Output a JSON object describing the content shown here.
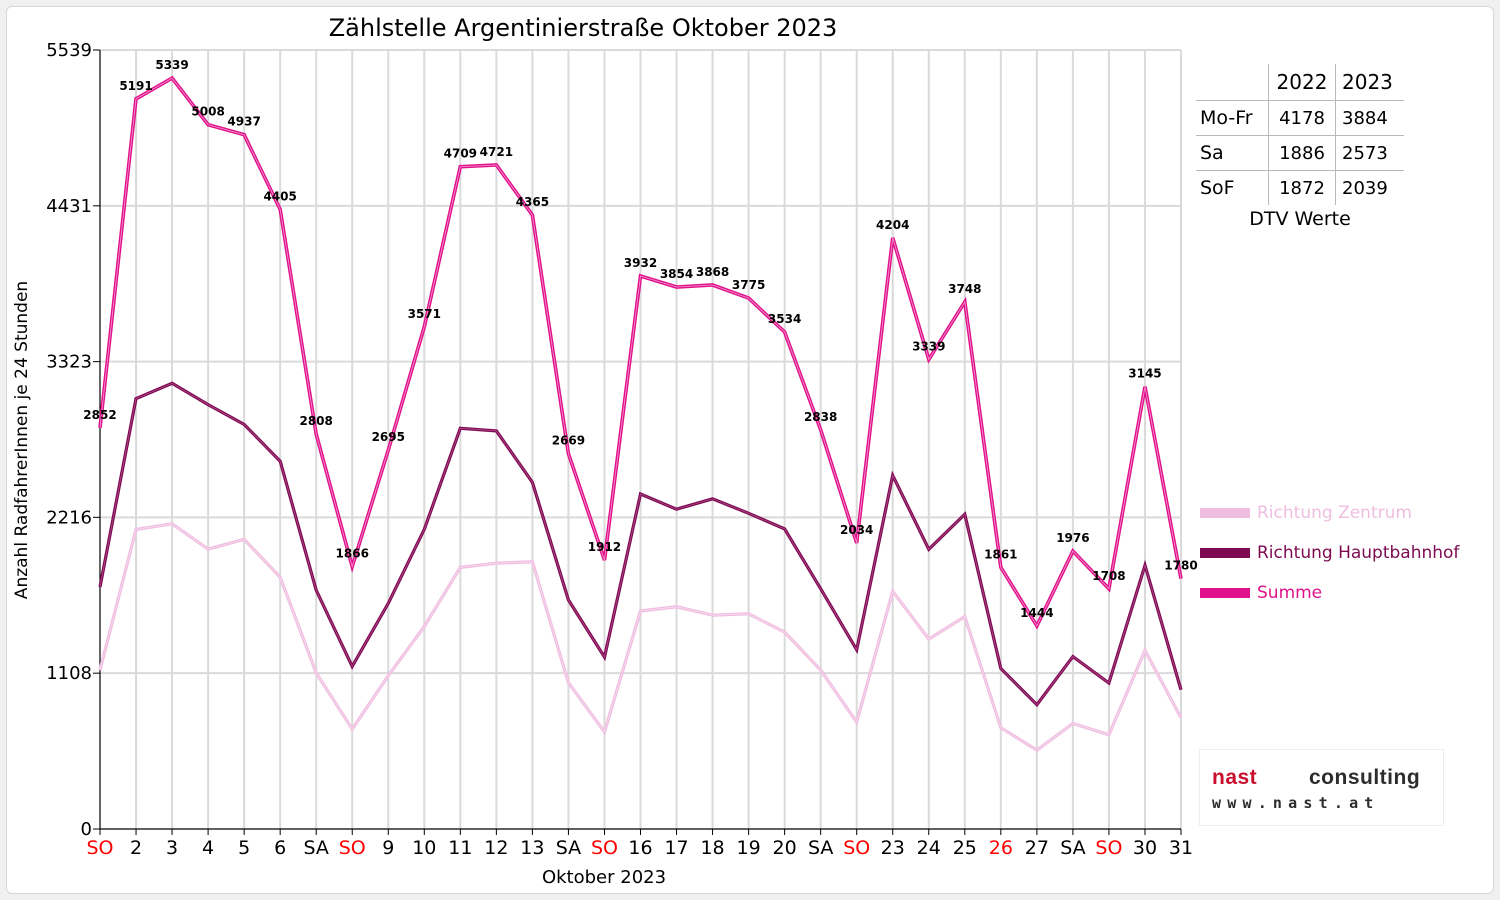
{
  "chart_data": {
    "type": "line",
    "title": "Zählstelle Argentinierstraße Oktober 2023",
    "xlabel": "Oktober 2023",
    "ylabel": "Anzahl RadfahrerInnen je 24 Stunden",
    "ylim": [
      0,
      5539
    ],
    "yticks": [
      0,
      1108,
      2216,
      3323,
      4431,
      5539
    ],
    "categories": [
      "SO",
      "2",
      "3",
      "4",
      "5",
      "6",
      "SA",
      "SO",
      "9",
      "10",
      "11",
      "12",
      "13",
      "SA",
      "SO",
      "16",
      "17",
      "18",
      "19",
      "20",
      "SA",
      "SO",
      "23",
      "24",
      "25",
      "26",
      "27",
      "SA",
      "SO",
      "30",
      "31"
    ],
    "red_categories": [
      0,
      7,
      14,
      21,
      25,
      28
    ],
    "grid": true,
    "legend_position": "right",
    "series": [
      {
        "name": "Richtung Zentrum",
        "color": "#efbde0",
        "values": [
          1130,
          2130,
          2170,
          1990,
          2060,
          1790,
          1110,
          710,
          1090,
          1440,
          1860,
          1890,
          1900,
          1040,
          690,
          1550,
          1580,
          1520,
          1530,
          1400,
          1130,
          760,
          1690,
          1350,
          1510,
          720,
          560,
          750,
          670,
          1270,
          790
        ]
      },
      {
        "name": "Richtung Hauptbahnhof",
        "color": "#7e0a52",
        "values": [
          1720,
          3060,
          3169,
          3018,
          2877,
          2615,
          1698,
          1156,
          1605,
          2131,
          2849,
          2831,
          2465,
          1629,
          1222,
          2382,
          2274,
          2348,
          2245,
          2134,
          1708,
          1274,
          2514,
          1989,
          2238,
          1141,
          884,
          1226,
          1038,
          1875,
          990
        ]
      },
      {
        "name": "Summe",
        "color": "#e0118b",
        "values": [
          2852,
          5191,
          5339,
          5008,
          4937,
          4405,
          2808,
          1866,
          2695,
          3571,
          4709,
          4721,
          4365,
          2669,
          1912,
          3932,
          3854,
          3868,
          3775,
          3534,
          2838,
          2034,
          4204,
          3339,
          3748,
          1861,
          1444,
          1976,
          1708,
          3145,
          1780
        ]
      }
    ]
  },
  "dtv_table": {
    "headers": [
      "",
      "2022",
      "2023"
    ],
    "rows": [
      {
        "label": "Mo-Fr",
        "v2022": "4178",
        "v2023": "3884"
      },
      {
        "label": "Sa",
        "v2022": "1886",
        "v2023": "2573"
      },
      {
        "label": "SoF",
        "v2022": "1872",
        "v2023": "2039"
      }
    ],
    "caption": "DTV Werte"
  },
  "logo": {
    "word1": "nast",
    "word2": "consulting",
    "url": "www.nast.at"
  }
}
